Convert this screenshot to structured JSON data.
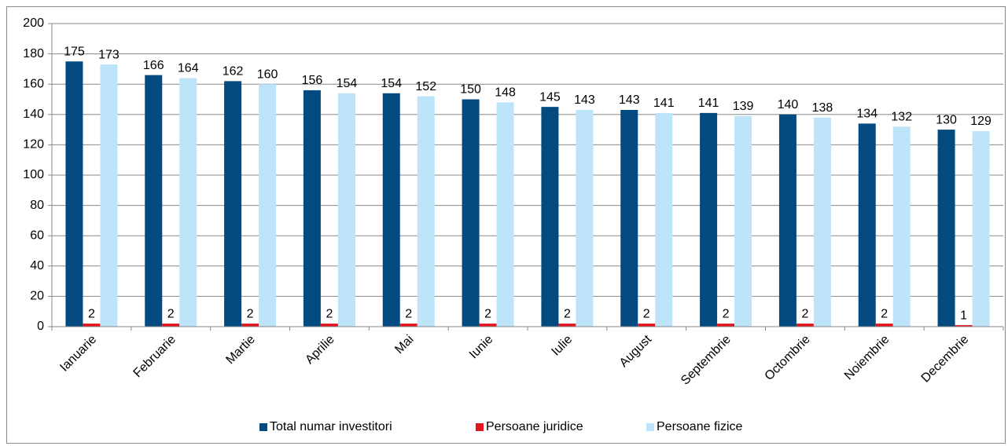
{
  "chart_data": {
    "type": "bar",
    "categories": [
      "Ianuarie",
      "Februarie",
      "Martie",
      "Aprilie",
      "Mai",
      "Iunie",
      "Iulie",
      "August",
      "Septembrie",
      "Octombrie",
      "Noiembrie",
      "Decembrie"
    ],
    "series": [
      {
        "name": "Total numar investitori",
        "color": "#034a80",
        "values": [
          175,
          166,
          162,
          156,
          154,
          150,
          145,
          143,
          141,
          140,
          134,
          130
        ]
      },
      {
        "name": "Persoane juridice",
        "color": "#e3141c",
        "values": [
          2,
          2,
          2,
          2,
          2,
          2,
          2,
          2,
          2,
          2,
          2,
          1
        ]
      },
      {
        "name": "Persoane fizice",
        "color": "#bde4f8",
        "values": [
          173,
          164,
          160,
          154,
          152,
          148,
          143,
          141,
          139,
          138,
          132,
          129
        ]
      }
    ],
    "ylim": [
      0,
      200
    ],
    "yticks": [
      0,
      20,
      40,
      60,
      80,
      100,
      120,
      140,
      160,
      180,
      200
    ],
    "grid": true,
    "legend": "bottom"
  }
}
